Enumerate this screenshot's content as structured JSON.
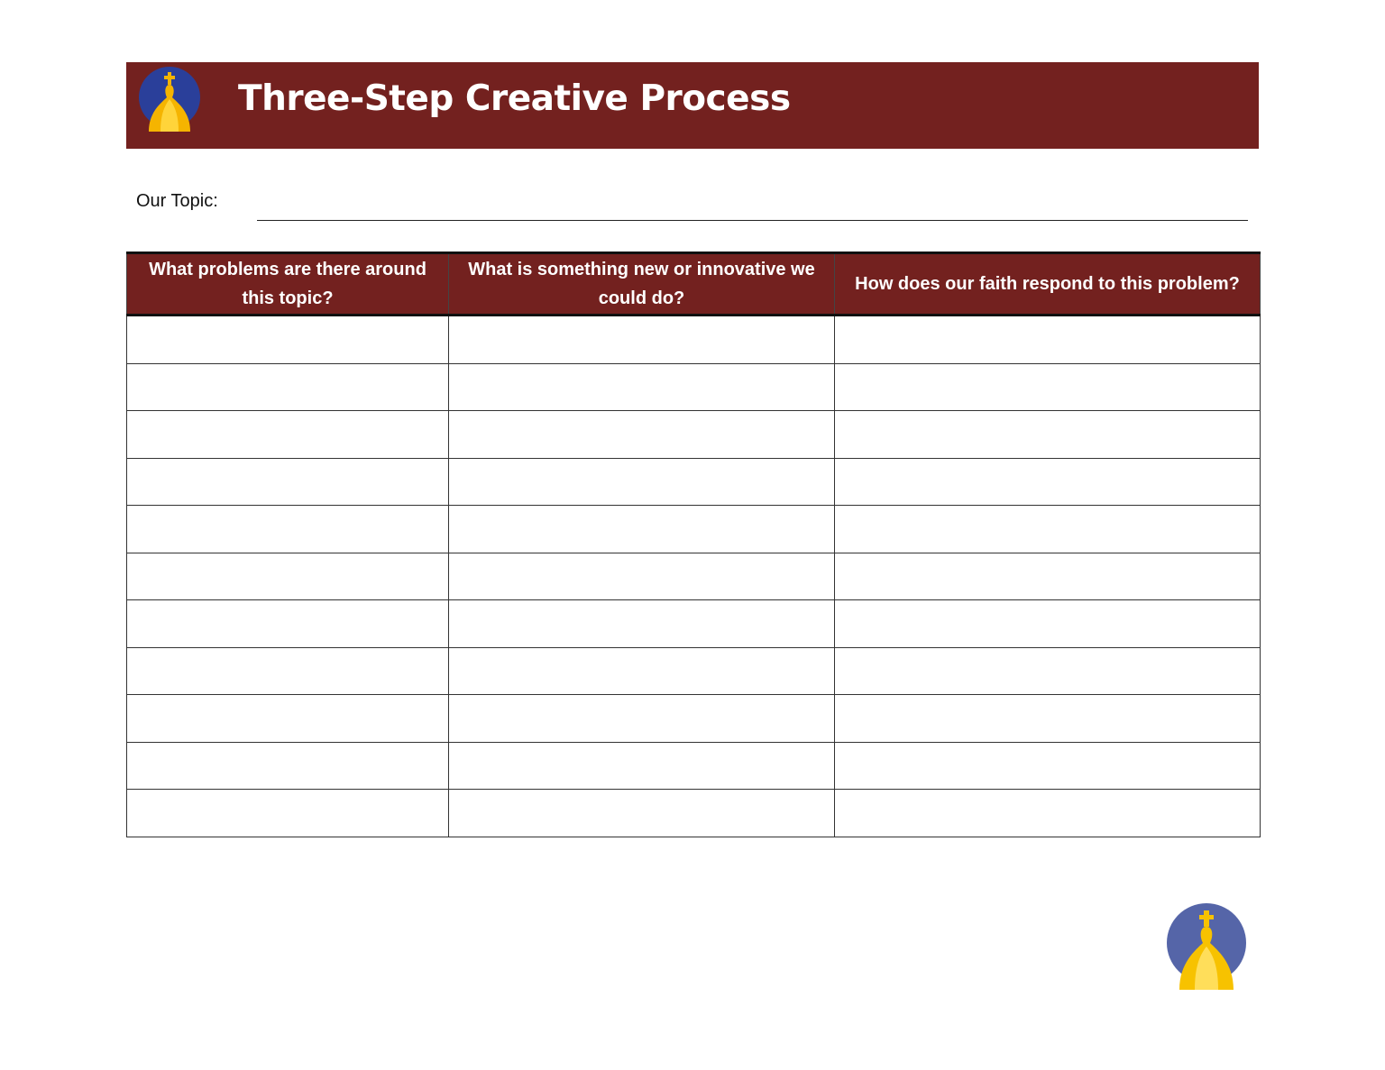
{
  "header": {
    "title": "Three-Step Creative Process",
    "logo_icon": "church-dome-logo-icon"
  },
  "topic": {
    "label": "Our Topic:",
    "value": ""
  },
  "table": {
    "columns": [
      "What problems are there around this topic?",
      "What is something new or innovative we could do?",
      "How does our faith respond to this problem?"
    ],
    "row_count": 11
  },
  "colors": {
    "brand": "#73211f",
    "logo_circle": "#2f4aa0",
    "logo_dome": "#f5b800"
  }
}
